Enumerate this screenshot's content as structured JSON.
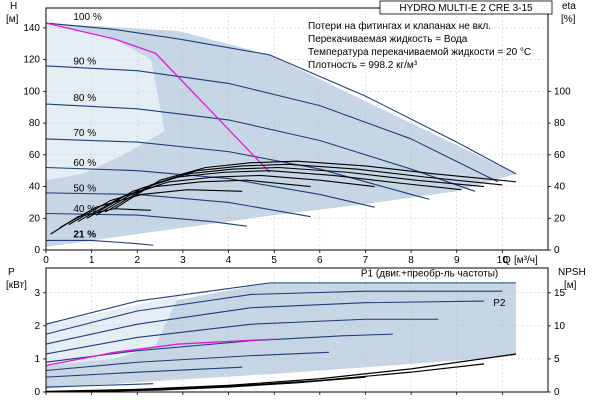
{
  "colors": {
    "envelope": "#c7d6e4",
    "inner_band": "#e6eef5",
    "curve": "#1f3d7a",
    "operating": "#e01adf",
    "black": "#000000"
  },
  "chart_data": [
    {
      "type": "line",
      "title": "HYDRO MULTI-E 2 CRE 3-15",
      "notes": [
        "Потери на фитингах и клапанах не вкл.",
        "Перекачиваемая жидкость = Вода",
        "Температура перекачиваемой жидкости = 20 °C",
        "Плотность = 998.2 кг/м³"
      ],
      "ylabel": "H",
      "yunit": "[м]",
      "y2label": "eta",
      "y2unit": "[%]",
      "xlabel": "Q",
      "xunit": "[м³/ч]",
      "xlim": [
        0,
        11
      ],
      "ylim": [
        0,
        150
      ],
      "y2lim": [
        0,
        150
      ],
      "xticks": [
        0,
        1,
        2,
        3,
        4,
        5,
        6,
        7,
        8,
        9,
        10
      ],
      "yticks": [
        0,
        20,
        40,
        60,
        80,
        100,
        120,
        140
      ],
      "y2ticks": [
        0,
        20,
        40,
        60,
        80,
        100
      ],
      "envelope": {
        "x": [
          0,
          2.9,
          4.9,
          10.3,
          9.0,
          8.0,
          7.0,
          5.0,
          4.0,
          3.0,
          2.0,
          1.0,
          0
        ],
        "y": [
          143,
          138,
          123,
          48,
          37,
          33,
          29,
          22,
          18,
          14,
          10,
          6,
          2
        ]
      },
      "inner_band": {
        "x": [
          0,
          1.5,
          2.3,
          2.6,
          1.7,
          0.8,
          0
        ],
        "y": [
          143,
          133,
          120,
          75,
          60,
          48,
          44
        ]
      },
      "speed_labels": [
        {
          "text": "100 %",
          "x": 0.6,
          "y": 145
        },
        {
          "text": "90 %",
          "x": 0.6,
          "y": 117
        },
        {
          "text": "80 %",
          "x": 0.6,
          "y": 94
        },
        {
          "text": "70 %",
          "x": 0.6,
          "y": 72
        },
        {
          "text": "60 %",
          "x": 0.6,
          "y": 53
        },
        {
          "text": "50 %",
          "x": 0.6,
          "y": 37
        },
        {
          "text": "40 %",
          "x": 0.6,
          "y": 24
        },
        {
          "text": "21 %",
          "x": 0.6,
          "y": 8
        }
      ],
      "series": [
        {
          "kind": "H",
          "speed": 100,
          "x": [
            0,
            1.5,
            2.9,
            4.9,
            7.0,
            9.0,
            10.3
          ],
          "y": [
            143,
            139,
            133,
            123,
            97,
            68,
            48
          ]
        },
        {
          "kind": "H",
          "speed": 90,
          "x": [
            0,
            2,
            4,
            6,
            8,
            9.9
          ],
          "y": [
            116,
            113,
            105,
            91,
            70,
            43
          ]
        },
        {
          "kind": "H",
          "speed": 80,
          "x": [
            0,
            2,
            4,
            6,
            8,
            9.4
          ],
          "y": [
            92,
            89,
            82,
            69,
            51,
            37
          ]
        },
        {
          "kind": "H",
          "speed": 70,
          "x": [
            0,
            2,
            4,
            6,
            8,
            8.4
          ],
          "y": [
            70,
            68,
            62,
            51,
            35,
            32
          ]
        },
        {
          "kind": "H",
          "speed": 60,
          "x": [
            0,
            2,
            4,
            6,
            7.2
          ],
          "y": [
            52,
            50,
            45,
            35,
            27
          ]
        },
        {
          "kind": "H",
          "speed": 50,
          "x": [
            0,
            2,
            4,
            5.8
          ],
          "y": [
            36,
            35,
            30,
            21
          ]
        },
        {
          "kind": "H",
          "speed": 40,
          "x": [
            0,
            2,
            3.6,
            4.4
          ],
          "y": [
            23,
            22,
            18,
            15
          ]
        },
        {
          "kind": "H",
          "speed": 21,
          "x": [
            0,
            1,
            2,
            2.35
          ],
          "y": [
            6,
            6,
            4,
            3
          ]
        },
        {
          "kind": "operating",
          "x": [
            0,
            1.5,
            2.4,
            4.9
          ],
          "y": [
            143,
            133,
            124,
            49
          ]
        },
        {
          "kind": "eta",
          "x": [
            1.5,
            2.5,
            3.5,
            4.5,
            5.5,
            7,
            8.5,
            10.3
          ],
          "y": [
            26,
            44,
            52,
            55,
            56,
            53,
            48,
            43
          ]
        },
        {
          "kind": "eta",
          "x": [
            1.3,
            2.3,
            3.3,
            4.3,
            5.3,
            6.8,
            8.3,
            10
          ],
          "y": [
            24,
            41,
            50,
            53,
            54,
            51,
            46,
            41
          ]
        },
        {
          "kind": "eta",
          "x": [
            1.1,
            2.1,
            3.1,
            4.1,
            5.1,
            6.6,
            8.1,
            9.6
          ],
          "y": [
            22,
            39,
            48,
            51,
            52,
            49,
            44,
            40
          ]
        },
        {
          "kind": "eta",
          "x": [
            0.9,
            1.9,
            2.9,
            3.9,
            4.9,
            6.3,
            7.8,
            9.1
          ],
          "y": [
            20,
            37,
            46,
            49,
            50,
            47,
            42,
            38
          ]
        },
        {
          "kind": "eta",
          "x": [
            0.7,
            1.7,
            2.7,
            3.7,
            4.7,
            6,
            7.2
          ],
          "y": [
            18,
            34,
            43,
            46,
            47,
            44,
            40
          ]
        },
        {
          "kind": "eta",
          "x": [
            0.5,
            1.4,
            2.4,
            3.4,
            4.4,
            5.8
          ],
          "y": [
            16,
            31,
            40,
            43,
            44,
            40
          ]
        },
        {
          "kind": "eta",
          "x": [
            0.3,
            1.1,
            2.1,
            3.1,
            4.3
          ],
          "y": [
            14,
            27,
            35,
            38,
            37
          ]
        },
        {
          "kind": "eta",
          "x": [
            0.1,
            0.7,
            1.5,
            2.3
          ],
          "y": [
            10,
            21,
            26,
            25
          ]
        }
      ]
    },
    {
      "type": "line",
      "ylabel": "P",
      "yunit": "[кВт]",
      "y2label": "NPSH",
      "y2unit": "[м]",
      "xlim": [
        0,
        11
      ],
      "ylim": [
        0,
        3.75
      ],
      "y2lim": [
        0,
        18.75
      ],
      "yticks": [
        0,
        1,
        2,
        3
      ],
      "y2ticks": [
        0,
        5,
        10,
        15
      ],
      "annotations": [
        {
          "text": "P1 (двиг.+преобр-ль частоты)",
          "x": 6.9,
          "y": 3.5
        },
        {
          "text": "P2",
          "x": 9.8,
          "y": 2.6
        }
      ],
      "envelope": {
        "x": [
          0,
          4.9,
          10.3,
          10.3,
          9.0,
          7.0,
          5.0,
          3.0,
          1.0,
          0
        ],
        "y": [
          2.05,
          3.3,
          3.3,
          1.1,
          0.95,
          0.75,
          0.55,
          0.38,
          0.2,
          0.1
        ]
      },
      "inner_band": {
        "x": [
          0,
          2.9,
          2.4,
          1.5,
          0
        ],
        "y": [
          2.05,
          2.9,
          1.4,
          1.0,
          0.8
        ]
      },
      "series": [
        {
          "kind": "P",
          "x": [
            0,
            2,
            4.9,
            7,
            10.3
          ],
          "y": [
            2.05,
            2.75,
            3.3,
            3.3,
            3.3
          ]
        },
        {
          "kind": "P",
          "x": [
            0,
            2,
            4.5,
            7,
            10
          ],
          "y": [
            1.75,
            2.45,
            2.95,
            3.05,
            3.05
          ]
        },
        {
          "kind": "P",
          "x": [
            0,
            2,
            4.5,
            7,
            9.6
          ],
          "y": [
            1.45,
            2.05,
            2.55,
            2.7,
            2.75
          ]
        },
        {
          "kind": "P",
          "x": [
            0,
            2,
            4.5,
            7,
            8.6
          ],
          "y": [
            1.15,
            1.65,
            2.05,
            2.2,
            2.2
          ]
        },
        {
          "kind": "P",
          "x": [
            0,
            2,
            4.5,
            6.5,
            7.6
          ],
          "y": [
            0.9,
            1.25,
            1.55,
            1.7,
            1.75
          ]
        },
        {
          "kind": "P",
          "x": [
            0,
            2,
            4.5,
            6.2
          ],
          "y": [
            0.65,
            0.9,
            1.1,
            1.2
          ]
        },
        {
          "kind": "P",
          "x": [
            0,
            2,
            4.3
          ],
          "y": [
            0.45,
            0.6,
            0.75
          ]
        },
        {
          "kind": "P",
          "x": [
            0,
            1.2,
            2.35
          ],
          "y": [
            0.15,
            0.2,
            0.25
          ]
        },
        {
          "kind": "operating",
          "x": [
            0,
            1.5,
            2.9,
            5.0
          ],
          "y": [
            0.8,
            1.2,
            1.45,
            1.6
          ]
        },
        {
          "kind": "NPSH",
          "x": [
            0,
            2,
            4,
            6,
            8,
            10.3
          ],
          "y": [
            0.02,
            0.08,
            0.2,
            0.4,
            0.7,
            1.15
          ]
        },
        {
          "kind": "NPSH",
          "x": [
            0.5,
            2,
            4,
            6,
            8,
            9.6
          ],
          "y": [
            0.02,
            0.06,
            0.17,
            0.35,
            0.6,
            0.85
          ]
        },
        {
          "kind": "NPSH",
          "x": [
            1.0,
            2.5,
            4,
            5.5,
            7
          ],
          "y": [
            0.02,
            0.06,
            0.15,
            0.28,
            0.45
          ]
        }
      ]
    }
  ]
}
